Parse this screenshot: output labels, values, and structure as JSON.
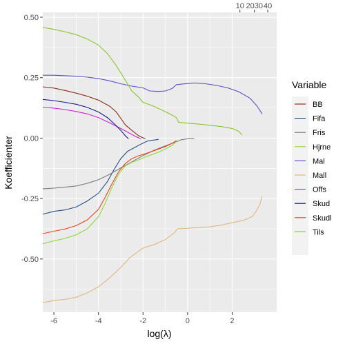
{
  "chart_data": {
    "type": "line",
    "xlabel": "log(λ)",
    "ylabel": "Koefficienter",
    "xlim": [
      -6.5,
      4.0
    ],
    "ylim": [
      -0.72,
      0.52
    ],
    "x_ticks": [
      -6,
      -4,
      -2,
      0,
      2
    ],
    "y_ticks": [
      -0.5,
      -0.25,
      0.0,
      0.25,
      0.5
    ],
    "y_tick_labels": [
      "-0.50",
      "-0.25",
      "0.00",
      "0.25",
      "0.50"
    ],
    "top_axis": {
      "ticks": [
        {
          "label": "10",
          "x": 2.35
        },
        {
          "label": "2030",
          "x": 3.0
        },
        {
          "label": "40",
          "x": 3.6
        }
      ]
    },
    "grid": true,
    "legend": {
      "title": "Variable",
      "position": "right",
      "entries": [
        "BB",
        "Fifa",
        "Fris",
        "Hjrne",
        "Mal",
        "Mall",
        "Offs",
        "Skud",
        "Skudl",
        "Tils"
      ]
    },
    "series": [
      {
        "name": "BB",
        "color": "#8B2E16",
        "points": [
          [
            -6.5,
            0.212
          ],
          [
            -6.0,
            0.207
          ],
          [
            -5.5,
            0.197
          ],
          [
            -5.0,
            0.186
          ],
          [
            -4.5,
            0.173
          ],
          [
            -4.0,
            0.157
          ],
          [
            -3.5,
            0.132
          ],
          [
            -3.2,
            0.108
          ],
          [
            -3.0,
            0.082
          ],
          [
            -2.8,
            0.055
          ],
          [
            -2.5,
            0.032
          ],
          [
            -2.2,
            0.01
          ],
          [
            -1.9,
            -0.003
          ]
        ]
      },
      {
        "name": "Fifa",
        "color": "#1F4E8C",
        "points": [
          [
            -6.5,
            -0.315
          ],
          [
            -6.0,
            -0.303
          ],
          [
            -5.5,
            -0.297
          ],
          [
            -5.0,
            -0.285
          ],
          [
            -4.5,
            -0.26
          ],
          [
            -4.0,
            -0.228
          ],
          [
            -3.6,
            -0.18
          ],
          [
            -3.3,
            -0.13
          ],
          [
            -3.0,
            -0.085
          ],
          [
            -2.7,
            -0.055
          ],
          [
            -2.4,
            -0.04
          ],
          [
            -2.1,
            -0.025
          ],
          [
            -1.8,
            -0.012
          ],
          [
            -1.5,
            -0.008
          ],
          [
            -1.3,
            -0.005
          ]
        ]
      },
      {
        "name": "Fris",
        "color": "#7B7B7B",
        "points": [
          [
            -6.5,
            -0.21
          ],
          [
            -6.0,
            -0.207
          ],
          [
            -5.5,
            -0.203
          ],
          [
            -5.0,
            -0.198
          ],
          [
            -4.5,
            -0.187
          ],
          [
            -4.0,
            -0.172
          ],
          [
            -3.5,
            -0.15
          ],
          [
            -3.0,
            -0.123
          ],
          [
            -2.5,
            -0.098
          ],
          [
            -2.0,
            -0.072
          ],
          [
            -1.5,
            -0.05
          ],
          [
            -1.0,
            -0.032
          ],
          [
            -0.5,
            -0.015
          ],
          [
            -0.3,
            -0.007
          ],
          [
            -0.1,
            -0.004
          ],
          [
            0.1,
            -0.002
          ],
          [
            0.3,
            -0.001
          ]
        ]
      },
      {
        "name": "Hjrne",
        "color": "#8FD83A",
        "points": [
          [
            -6.5,
            -0.437
          ],
          [
            -6.0,
            -0.425
          ],
          [
            -5.5,
            -0.415
          ],
          [
            -5.0,
            -0.4
          ],
          [
            -4.5,
            -0.375
          ],
          [
            -4.0,
            -0.325
          ],
          [
            -3.7,
            -0.27
          ],
          [
            -3.4,
            -0.205
          ],
          [
            -3.1,
            -0.15
          ],
          [
            -2.8,
            -0.115
          ],
          [
            -2.5,
            -0.1
          ],
          [
            -2.2,
            -0.09
          ],
          [
            -1.9,
            -0.078
          ],
          [
            -1.6,
            -0.068
          ],
          [
            -1.3,
            -0.058
          ],
          [
            -1.0,
            -0.045
          ],
          [
            -0.7,
            -0.03
          ],
          [
            -0.5,
            -0.015
          ]
        ]
      },
      {
        "name": "Mal",
        "color": "#5B50C8",
        "points": [
          [
            -6.5,
            0.26
          ],
          [
            -6.0,
            0.26
          ],
          [
            -5.5,
            0.258
          ],
          [
            -5.0,
            0.256
          ],
          [
            -4.5,
            0.252
          ],
          [
            -4.0,
            0.246
          ],
          [
            -3.5,
            0.237
          ],
          [
            -3.0,
            0.225
          ],
          [
            -2.5,
            0.215
          ],
          [
            -2.0,
            0.208
          ],
          [
            -1.7,
            0.195
          ],
          [
            -1.3,
            0.193
          ],
          [
            -1.0,
            0.195
          ],
          [
            -0.7,
            0.205
          ],
          [
            -0.5,
            0.221
          ],
          [
            -0.2,
            0.224
          ],
          [
            0.3,
            0.228
          ],
          [
            0.8,
            0.225
          ],
          [
            1.3,
            0.218
          ],
          [
            1.8,
            0.208
          ],
          [
            2.3,
            0.192
          ],
          [
            2.8,
            0.165
          ],
          [
            3.1,
            0.135
          ],
          [
            3.35,
            0.1
          ]
        ]
      },
      {
        "name": "Mall",
        "color": "#E0B67F",
        "points": [
          [
            -6.5,
            -0.68
          ],
          [
            -6.0,
            -0.672
          ],
          [
            -5.5,
            -0.667
          ],
          [
            -5.0,
            -0.658
          ],
          [
            -4.5,
            -0.64
          ],
          [
            -4.0,
            -0.615
          ],
          [
            -3.5,
            -0.578
          ],
          [
            -3.0,
            -0.535
          ],
          [
            -2.6,
            -0.495
          ],
          [
            -2.2,
            -0.468
          ],
          [
            -2.0,
            -0.455
          ],
          [
            -1.5,
            -0.44
          ],
          [
            -1.0,
            -0.42
          ],
          [
            -0.6,
            -0.392
          ],
          [
            -0.45,
            -0.375
          ],
          [
            0.0,
            -0.373
          ],
          [
            0.5,
            -0.37
          ],
          [
            1.0,
            -0.367
          ],
          [
            1.5,
            -0.36
          ],
          [
            2.0,
            -0.35
          ],
          [
            2.5,
            -0.34
          ],
          [
            2.9,
            -0.325
          ],
          [
            3.1,
            -0.3
          ],
          [
            3.25,
            -0.272
          ],
          [
            3.35,
            -0.24
          ]
        ]
      },
      {
        "name": "Offs",
        "color": "#D21FD8",
        "points": [
          [
            -6.5,
            0.128
          ],
          [
            -6.0,
            0.124
          ],
          [
            -5.5,
            0.118
          ],
          [
            -5.0,
            0.11
          ],
          [
            -4.5,
            0.1
          ],
          [
            -4.0,
            0.085
          ],
          [
            -3.5,
            0.063
          ],
          [
            -3.0,
            0.04
          ],
          [
            -2.6,
            0.02
          ],
          [
            -2.3,
            0.005
          ],
          [
            -2.1,
            -0.002
          ]
        ]
      },
      {
        "name": "Skud",
        "color": "#101A8C",
        "points": [
          [
            -6.5,
            0.16
          ],
          [
            -6.0,
            0.155
          ],
          [
            -5.5,
            0.148
          ],
          [
            -5.0,
            0.14
          ],
          [
            -4.5,
            0.127
          ],
          [
            -4.0,
            0.108
          ],
          [
            -3.6,
            0.085
          ],
          [
            -3.3,
            0.06
          ],
          [
            -3.0,
            0.032
          ],
          [
            -2.8,
            0.01
          ],
          [
            -2.65,
            -0.003
          ]
        ]
      },
      {
        "name": "Skudl",
        "color": "#E6461E",
        "points": [
          [
            -6.5,
            -0.395
          ],
          [
            -6.0,
            -0.385
          ],
          [
            -5.5,
            -0.376
          ],
          [
            -5.0,
            -0.362
          ],
          [
            -4.5,
            -0.338
          ],
          [
            -4.0,
            -0.295
          ],
          [
            -3.7,
            -0.245
          ],
          [
            -3.4,
            -0.19
          ],
          [
            -3.1,
            -0.14
          ],
          [
            -2.8,
            -0.105
          ],
          [
            -2.5,
            -0.085
          ],
          [
            -2.2,
            -0.073
          ],
          [
            -1.9,
            -0.065
          ],
          [
            -1.6,
            -0.055
          ],
          [
            -1.3,
            -0.045
          ],
          [
            -1.0,
            -0.035
          ],
          [
            -0.7,
            -0.022
          ],
          [
            -0.5,
            -0.01
          ]
        ]
      },
      {
        "name": "Tils",
        "color": "#86C72C",
        "points": [
          [
            -6.5,
            0.458
          ],
          [
            -6.0,
            0.45
          ],
          [
            -5.5,
            0.44
          ],
          [
            -5.0,
            0.428
          ],
          [
            -4.5,
            0.41
          ],
          [
            -4.0,
            0.385
          ],
          [
            -3.6,
            0.35
          ],
          [
            -3.2,
            0.3
          ],
          [
            -2.8,
            0.24
          ],
          [
            -2.5,
            0.195
          ],
          [
            -2.2,
            0.17
          ],
          [
            -2.0,
            0.148
          ],
          [
            -1.6,
            0.135
          ],
          [
            -1.2,
            0.118
          ],
          [
            -0.8,
            0.1
          ],
          [
            -0.5,
            0.085
          ],
          [
            -0.4,
            0.065
          ],
          [
            0.0,
            0.062
          ],
          [
            0.5,
            0.058
          ],
          [
            1.0,
            0.053
          ],
          [
            1.5,
            0.048
          ],
          [
            2.0,
            0.04
          ],
          [
            2.3,
            0.028
          ],
          [
            2.45,
            0.012
          ]
        ]
      }
    ]
  }
}
